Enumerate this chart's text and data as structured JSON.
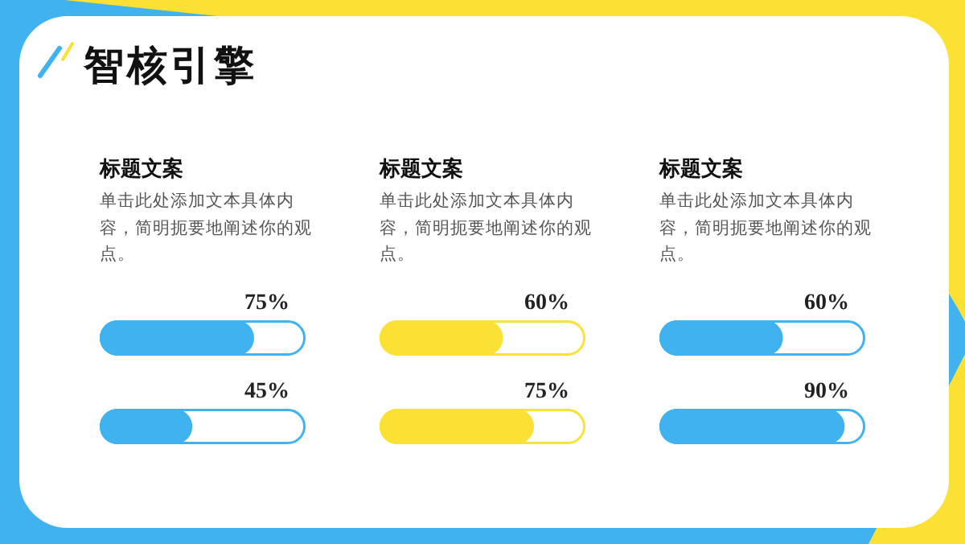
{
  "chart_data": [
    {
      "type": "bar",
      "orientation": "horizontal",
      "title": "标题文案",
      "subtitle": "单击此处添加文本具体内容，简明扼要地阐述你的观点。",
      "annotations": [
        "智核引擎"
      ],
      "categories": [
        null,
        null
      ],
      "values": [
        75,
        45
      ],
      "value_labels": [
        "75%",
        "45%"
      ],
      "color": "#3fb2ef",
      "xlim": [
        0,
        100
      ]
    },
    {
      "type": "bar",
      "orientation": "horizontal",
      "title": "标题文案",
      "subtitle": "单击此处添加文本具体内容，简明扼要地阐述你的观点。",
      "categories": [
        null,
        null
      ],
      "values": [
        60,
        75
      ],
      "value_labels": [
        "60%",
        "75%"
      ],
      "color": "#fbe133",
      "xlim": [
        0,
        100
      ]
    },
    {
      "type": "bar",
      "orientation": "horizontal",
      "title": "标题文案",
      "subtitle": "单击此处添加文本具体内容，简明扼要地阐述你的观点。",
      "categories": [
        null,
        null
      ],
      "values": [
        60,
        90
      ],
      "value_labels": [
        "60%",
        "90%"
      ],
      "color": "#3fb2ef",
      "xlim": [
        0,
        100
      ]
    }
  ]
}
